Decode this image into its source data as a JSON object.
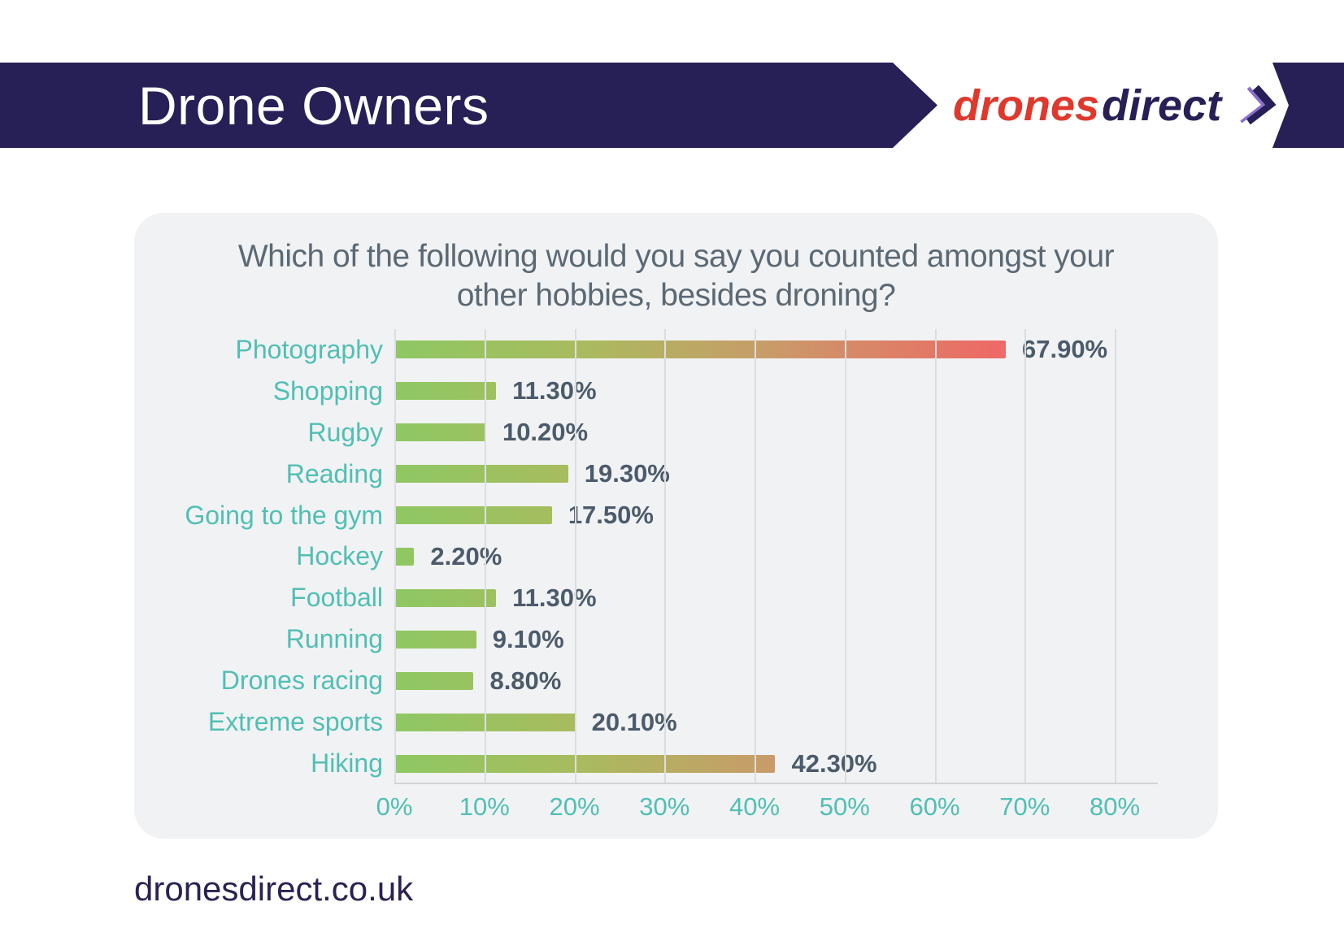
{
  "header": {
    "title": "Drone Owners",
    "brand": {
      "part1": "drones",
      "part2": "direct"
    }
  },
  "theme": {
    "navy": "#272057",
    "red": "#df382d",
    "purple": "#8a6ed0",
    "teal": "#50bfb4",
    "panel_bg": "#f1f2f4",
    "title_color": "#5b6974",
    "value_color": "#4c5b6b"
  },
  "chart_data": {
    "type": "bar",
    "orientation": "horizontal",
    "title": "Which of the following would you say you counted amongst your other hobbies, besides droning?",
    "categories": [
      "Photography",
      "Shopping",
      "Rugby",
      "Reading",
      "Going to the gym",
      "Hockey",
      "Football",
      "Running",
      "Drones racing",
      "Extreme sports",
      "Hiking"
    ],
    "values": [
      67.9,
      11.3,
      10.2,
      19.3,
      17.5,
      2.2,
      11.3,
      9.1,
      8.8,
      20.1,
      42.3
    ],
    "value_labels": [
      "67.90%",
      "11.30%",
      "10.20%",
      "19.30%",
      "17.50%",
      "2.20%",
      "11.30%",
      "9.10%",
      "8.80%",
      "20.10%",
      "42.30%"
    ],
    "x_ticks": [
      "0%",
      "10%",
      "20%",
      "30%",
      "40%",
      "50%",
      "60%",
      "70%",
      "80%"
    ],
    "xlim": [
      0,
      80
    ],
    "grid": true,
    "legend": "none",
    "bar_gradient": [
      "#8ec863",
      "#a9bb5e",
      "#c89c69",
      "#ed6a66"
    ]
  },
  "footer": {
    "website": "dronesdirect.co.uk"
  }
}
